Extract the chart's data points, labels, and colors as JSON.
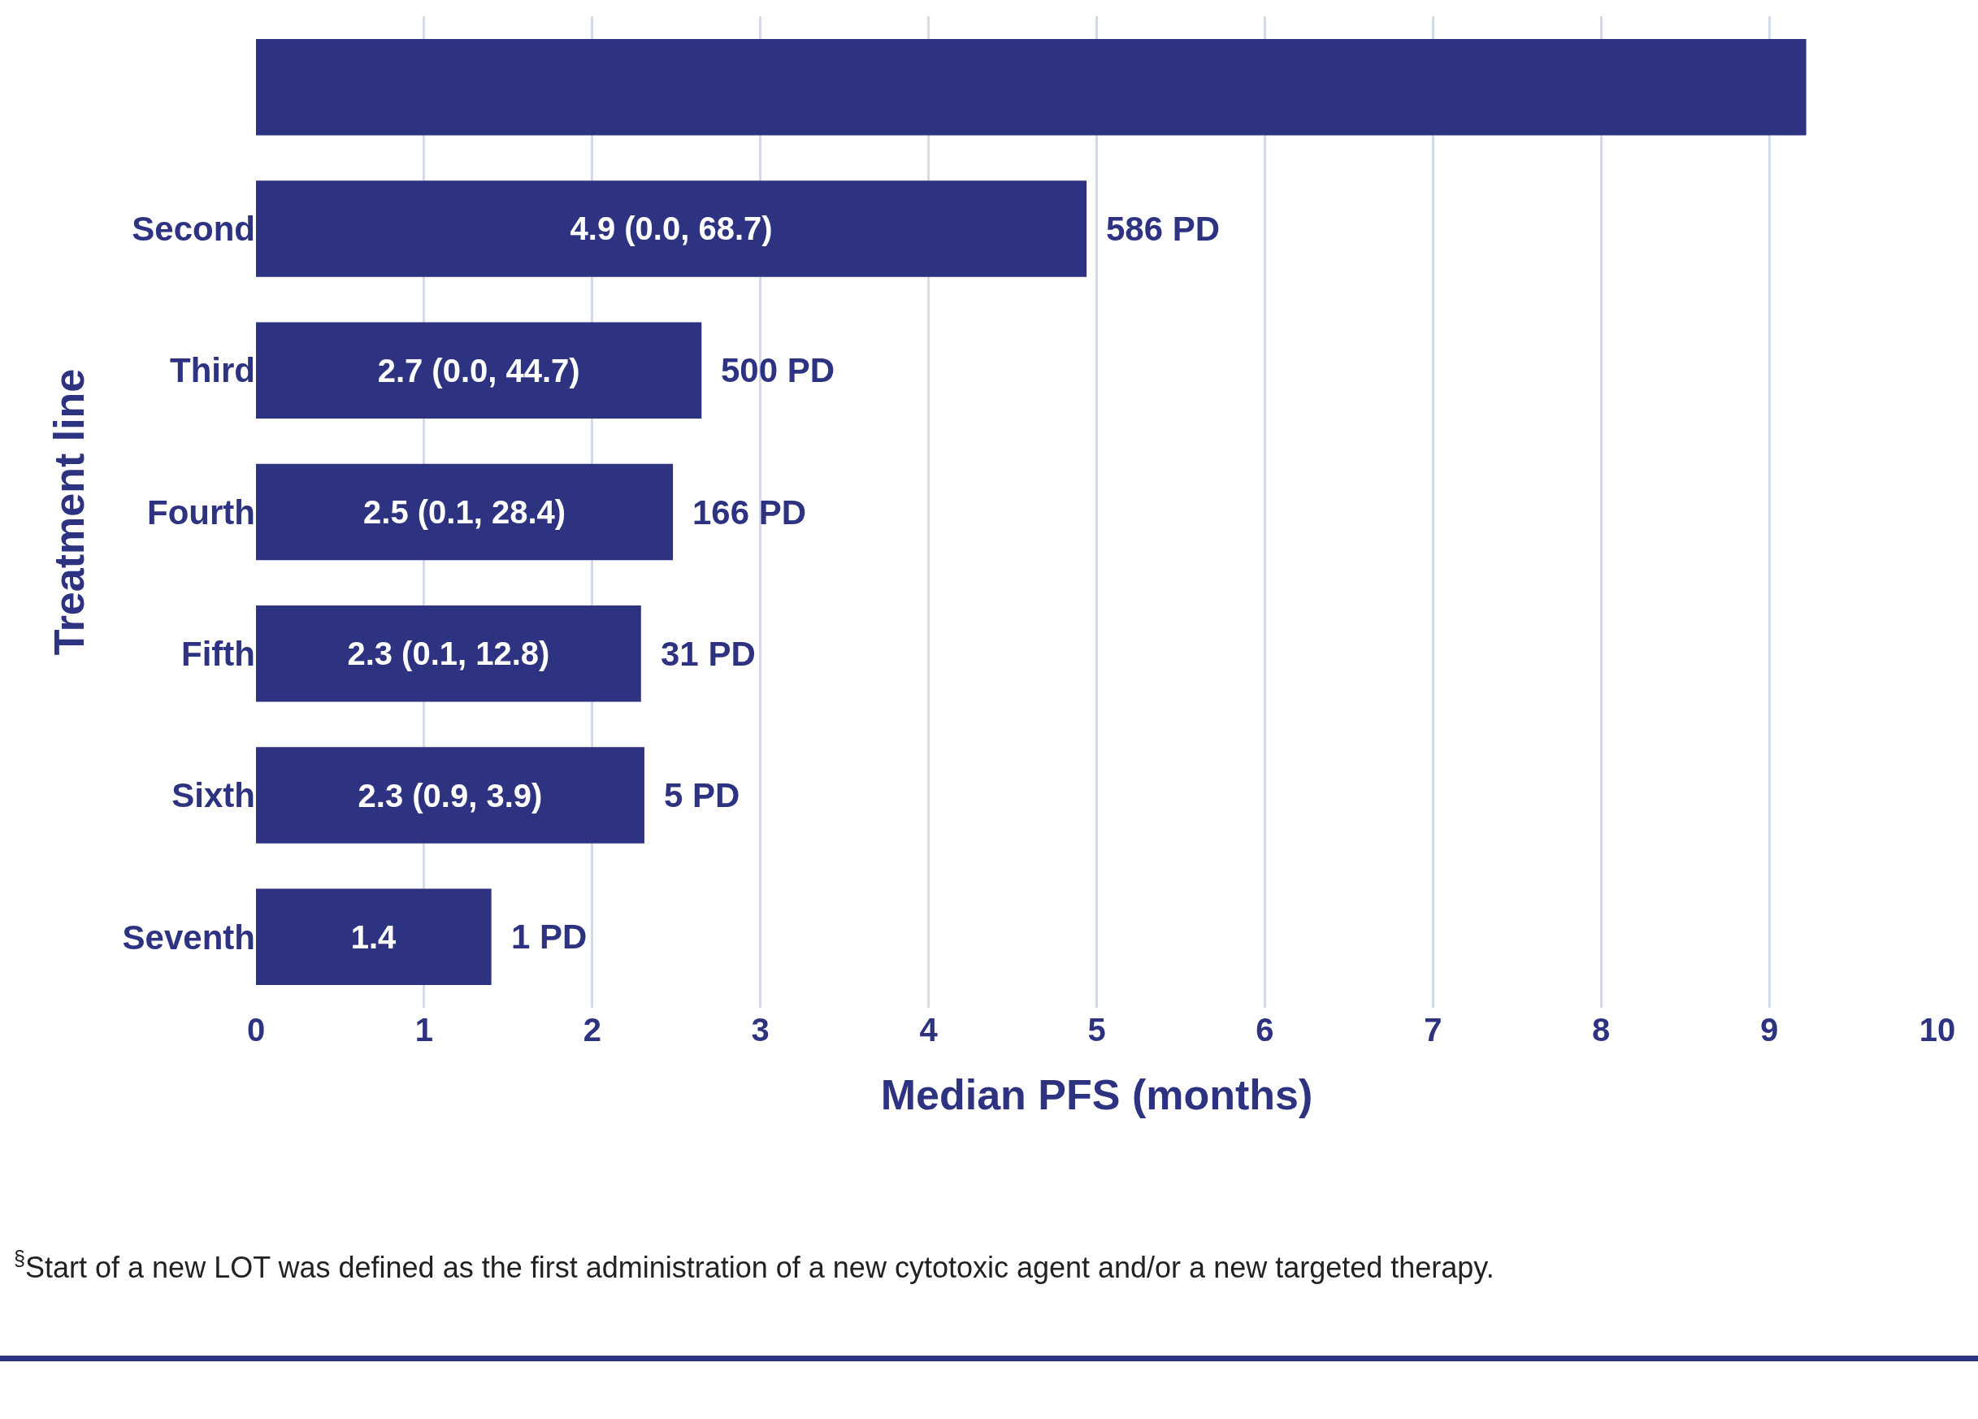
{
  "chart_data": {
    "type": "bar",
    "orientation": "horizontal",
    "xlabel": "Median PFS (months)",
    "ylabel": "Treatment line",
    "categories": [
      null,
      "Second",
      "Third",
      "Fourth",
      "Fifth",
      "Sixth",
      "Seventh"
    ],
    "values": [
      9.22,
      4.94,
      2.65,
      2.48,
      2.29,
      2.31,
      1.4
    ],
    "value_labels": [
      null,
      "4.9 (0.0, 68.7)",
      "2.7 (0.0, 44.7)",
      "2.5 (0.1, 28.4)",
      "2.3 (0.1, 12.8)",
      "2.3 (0.9, 3.9)",
      "1.4"
    ],
    "color": "#2e3381",
    "xlim": [
      0,
      10
    ],
    "xticks": [
      0,
      1,
      2,
      3,
      4,
      5,
      6,
      7,
      8,
      9,
      10
    ],
    "grid": "x",
    "legend": false,
    "annotations": [
      {
        "text": "586 PD",
        "x": 4.94,
        "y": "Second"
      },
      {
        "text": "500 PD",
        "x": 2.65,
        "y": "Third"
      },
      {
        "text": "166 PD",
        "x": 2.48,
        "y": "Fourth"
      },
      {
        "text": "31 PD",
        "x": 2.29,
        "y": "Fifth"
      },
      {
        "text": "5 PD",
        "x": 2.31,
        "y": "Sixth"
      },
      {
        "text": "1 PD",
        "x": 1.4,
        "y": "Seventh"
      },
      "$^{§}$Start of a new LOT was defined as the first administration of a new cytotoxic agent and/or a new targeted therapy."
    ]
  }
}
